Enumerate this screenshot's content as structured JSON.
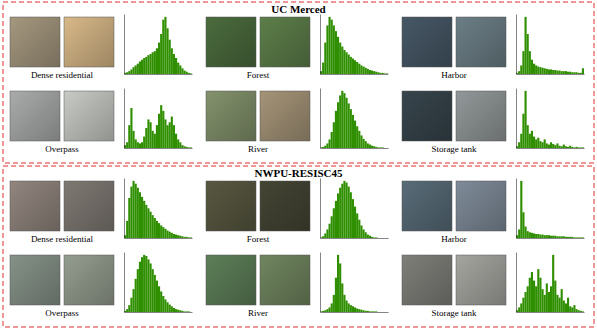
{
  "sections": [
    "UC Merced",
    "NWPU-RESISC45"
  ],
  "chart_data": [
    {
      "type": "histogram",
      "title": "Dense residential",
      "color": "#2f8f00",
      "tick_labels": false,
      "xlim": [
        0,
        256
      ],
      "ylim": [
        0,
        105
      ],
      "bins": [
        0,
        8,
        16,
        24,
        32,
        40,
        48,
        56,
        64,
        72,
        80,
        88,
        96,
        104,
        112,
        120,
        128,
        136,
        144,
        152,
        160,
        168,
        176,
        184,
        192,
        200,
        208,
        216,
        224,
        232,
        240,
        248,
        256
      ],
      "values": [
        2,
        3,
        5,
        8,
        12,
        15,
        18,
        22,
        25,
        28,
        30,
        33,
        35,
        38,
        40,
        45,
        55,
        70,
        95,
        100,
        80,
        60,
        45,
        35,
        28,
        20,
        15,
        10,
        6,
        4,
        2,
        1
      ]
    },
    {
      "type": "histogram",
      "title": "Forest",
      "color": "#2f8f00",
      "tick_labels": false,
      "xlim": [
        0,
        256
      ],
      "ylim": [
        0,
        105
      ],
      "bins": [
        0,
        8,
        16,
        24,
        32,
        40,
        48,
        56,
        64,
        72,
        80,
        88,
        96,
        104,
        112,
        120,
        128,
        136,
        144,
        152,
        160,
        168,
        176,
        184,
        192,
        200,
        208,
        216,
        224,
        232,
        240,
        248,
        256
      ],
      "values": [
        5,
        20,
        55,
        85,
        100,
        95,
        85,
        75,
        65,
        55,
        48,
        42,
        38,
        34,
        30,
        27,
        24,
        21,
        18,
        15,
        13,
        11,
        9,
        7,
        6,
        5,
        4,
        3,
        2,
        2,
        1,
        1
      ]
    },
    {
      "type": "histogram",
      "title": "Harbor",
      "color": "#2f8f00",
      "tick_labels": false,
      "xlim": [
        0,
        256
      ],
      "ylim": [
        0,
        105
      ],
      "bins": [
        0,
        8,
        16,
        24,
        32,
        40,
        48,
        56,
        64,
        72,
        80,
        88,
        96,
        104,
        112,
        120,
        128,
        136,
        144,
        152,
        160,
        168,
        176,
        184,
        192,
        200,
        208,
        216,
        224,
        232,
        240,
        248,
        256
      ],
      "values": [
        2,
        5,
        15,
        40,
        100,
        70,
        40,
        25,
        18,
        15,
        13,
        12,
        11,
        10,
        9,
        8,
        8,
        7,
        7,
        6,
        6,
        5,
        5,
        5,
        4,
        4,
        3,
        3,
        3,
        2,
        2,
        10
      ]
    },
    {
      "type": "histogram",
      "title": "Overpass",
      "color": "#2f8f00",
      "tick_labels": false,
      "xlim": [
        0,
        256
      ],
      "ylim": [
        0,
        105
      ],
      "bins": [
        0,
        8,
        16,
        24,
        32,
        40,
        48,
        56,
        64,
        72,
        80,
        88,
        96,
        104,
        112,
        120,
        128,
        136,
        144,
        152,
        160,
        168,
        176,
        184,
        192,
        200,
        208,
        216,
        224,
        232,
        240,
        248,
        256
      ],
      "values": [
        5,
        10,
        40,
        70,
        30,
        15,
        10,
        8,
        10,
        20,
        35,
        50,
        45,
        30,
        25,
        40,
        60,
        75,
        65,
        50,
        40,
        45,
        55,
        40,
        25,
        15,
        10,
        5,
        3,
        2,
        1,
        1
      ]
    },
    {
      "type": "histogram",
      "title": "River",
      "color": "#2f8f00",
      "tick_labels": false,
      "xlim": [
        0,
        256
      ],
      "ylim": [
        0,
        105
      ],
      "bins": [
        0,
        8,
        16,
        24,
        32,
        40,
        48,
        56,
        64,
        72,
        80,
        88,
        96,
        104,
        112,
        120,
        128,
        136,
        144,
        152,
        160,
        168,
        176,
        184,
        192,
        200,
        208,
        216,
        224,
        232,
        240,
        248,
        256
      ],
      "values": [
        1,
        2,
        4,
        8,
        15,
        28,
        45,
        65,
        80,
        92,
        100,
        96,
        88,
        78,
        68,
        58,
        48,
        38,
        30,
        22,
        16,
        12,
        8,
        6,
        4,
        3,
        2,
        1,
        1,
        1,
        0,
        0
      ]
    },
    {
      "type": "histogram",
      "title": "Storage tank",
      "color": "#2f8f00",
      "tick_labels": false,
      "xlim": [
        0,
        256
      ],
      "ylim": [
        0,
        105
      ],
      "bins": [
        0,
        8,
        16,
        24,
        32,
        40,
        48,
        56,
        64,
        72,
        80,
        88,
        96,
        104,
        112,
        120,
        128,
        136,
        144,
        152,
        160,
        168,
        176,
        184,
        192,
        200,
        208,
        216,
        224,
        232,
        240,
        248,
        256
      ],
      "values": [
        3,
        10,
        25,
        60,
        100,
        40,
        25,
        30,
        20,
        15,
        18,
        12,
        10,
        15,
        8,
        6,
        10,
        7,
        5,
        8,
        4,
        3,
        6,
        3,
        2,
        4,
        2,
        1,
        2,
        1,
        1,
        1
      ]
    },
    {
      "type": "histogram",
      "title": "Dense residential",
      "color": "#2f8f00",
      "tick_labels": false,
      "xlim": [
        0,
        256
      ],
      "ylim": [
        0,
        105
      ],
      "bins": [
        0,
        8,
        16,
        24,
        32,
        40,
        48,
        56,
        64,
        72,
        80,
        88,
        96,
        104,
        112,
        120,
        128,
        136,
        144,
        152,
        160,
        168,
        176,
        184,
        192,
        200,
        208,
        216,
        224,
        232,
        240,
        248,
        256
      ],
      "values": [
        5,
        30,
        70,
        90,
        100,
        95,
        88,
        80,
        72,
        65,
        58,
        52,
        46,
        40,
        35,
        30,
        26,
        22,
        19,
        16,
        13,
        11,
        9,
        7,
        6,
        5,
        4,
        3,
        2,
        2,
        1,
        1
      ]
    },
    {
      "type": "histogram",
      "title": "Forest",
      "color": "#2f8f00",
      "tick_labels": false,
      "xlim": [
        0,
        256
      ],
      "ylim": [
        0,
        105
      ],
      "bins": [
        0,
        8,
        16,
        24,
        32,
        40,
        48,
        56,
        64,
        72,
        80,
        88,
        96,
        104,
        112,
        120,
        128,
        136,
        144,
        152,
        160,
        168,
        176,
        184,
        192,
        200,
        208,
        216,
        224,
        232,
        240,
        248,
        256
      ],
      "values": [
        1,
        3,
        8,
        15,
        25,
        38,
        52,
        65,
        78,
        88,
        95,
        100,
        97,
        90,
        80,
        68,
        55,
        43,
        32,
        22,
        15,
        10,
        6,
        4,
        2,
        1,
        1,
        0,
        0,
        0,
        0,
        0
      ]
    },
    {
      "type": "histogram",
      "title": "Harbor",
      "color": "#2f8f00",
      "tick_labels": false,
      "xlim": [
        0,
        256
      ],
      "ylim": [
        0,
        105
      ],
      "bins": [
        0,
        8,
        16,
        24,
        32,
        40,
        48,
        56,
        64,
        72,
        80,
        88,
        96,
        104,
        112,
        120,
        128,
        136,
        144,
        152,
        160,
        168,
        176,
        184,
        192,
        200,
        208,
        216,
        224,
        232,
        240,
        248,
        256
      ],
      "values": [
        5,
        15,
        100,
        45,
        20,
        12,
        10,
        9,
        8,
        7,
        7,
        6,
        6,
        5,
        5,
        5,
        4,
        4,
        4,
        3,
        3,
        3,
        3,
        2,
        2,
        2,
        2,
        1,
        1,
        1,
        1,
        1
      ]
    },
    {
      "type": "histogram",
      "title": "Overpass",
      "color": "#2f8f00",
      "tick_labels": false,
      "xlim": [
        0,
        256
      ],
      "ylim": [
        0,
        105
      ],
      "bins": [
        0,
        8,
        16,
        24,
        32,
        40,
        48,
        56,
        64,
        72,
        80,
        88,
        96,
        104,
        112,
        120,
        128,
        136,
        144,
        152,
        160,
        168,
        176,
        184,
        192,
        200,
        208,
        216,
        224,
        232,
        240,
        248,
        256
      ],
      "values": [
        2,
        5,
        12,
        25,
        40,
        58,
        75,
        88,
        96,
        100,
        98,
        92,
        85,
        75,
        65,
        55,
        45,
        36,
        28,
        22,
        17,
        13,
        10,
        7,
        5,
        4,
        3,
        2,
        1,
        1,
        1,
        0
      ]
    },
    {
      "type": "histogram",
      "title": "River",
      "color": "#2f8f00",
      "tick_labels": false,
      "xlim": [
        0,
        256
      ],
      "ylim": [
        0,
        105
      ],
      "bins": [
        0,
        8,
        16,
        24,
        32,
        40,
        48,
        56,
        64,
        72,
        80,
        88,
        96,
        104,
        112,
        120,
        128,
        136,
        144,
        152,
        160,
        168,
        176,
        184,
        192,
        200,
        208,
        216,
        224,
        232,
        240,
        248,
        256
      ],
      "values": [
        1,
        2,
        3,
        5,
        8,
        15,
        30,
        60,
        100,
        85,
        50,
        30,
        20,
        15,
        12,
        10,
        8,
        6,
        5,
        4,
        3,
        2,
        2,
        1,
        1,
        1,
        1,
        0,
        0,
        0,
        0,
        0
      ]
    },
    {
      "type": "histogram",
      "title": "Storage tank",
      "color": "#2f8f00",
      "tick_labels": false,
      "xlim": [
        0,
        256
      ],
      "ylim": [
        0,
        105
      ],
      "bins": [
        0,
        8,
        16,
        24,
        32,
        40,
        48,
        56,
        64,
        72,
        80,
        88,
        96,
        104,
        112,
        120,
        128,
        136,
        144,
        152,
        160,
        168,
        176,
        184,
        192,
        200,
        208,
        216,
        224,
        232,
        240,
        248,
        256
      ],
      "values": [
        3,
        8,
        15,
        25,
        35,
        45,
        60,
        70,
        55,
        45,
        75,
        60,
        40,
        30,
        50,
        35,
        45,
        100,
        55,
        30,
        25,
        40,
        20,
        15,
        25,
        10,
        8,
        12,
        5,
        3,
        2,
        1
      ]
    }
  ]
}
